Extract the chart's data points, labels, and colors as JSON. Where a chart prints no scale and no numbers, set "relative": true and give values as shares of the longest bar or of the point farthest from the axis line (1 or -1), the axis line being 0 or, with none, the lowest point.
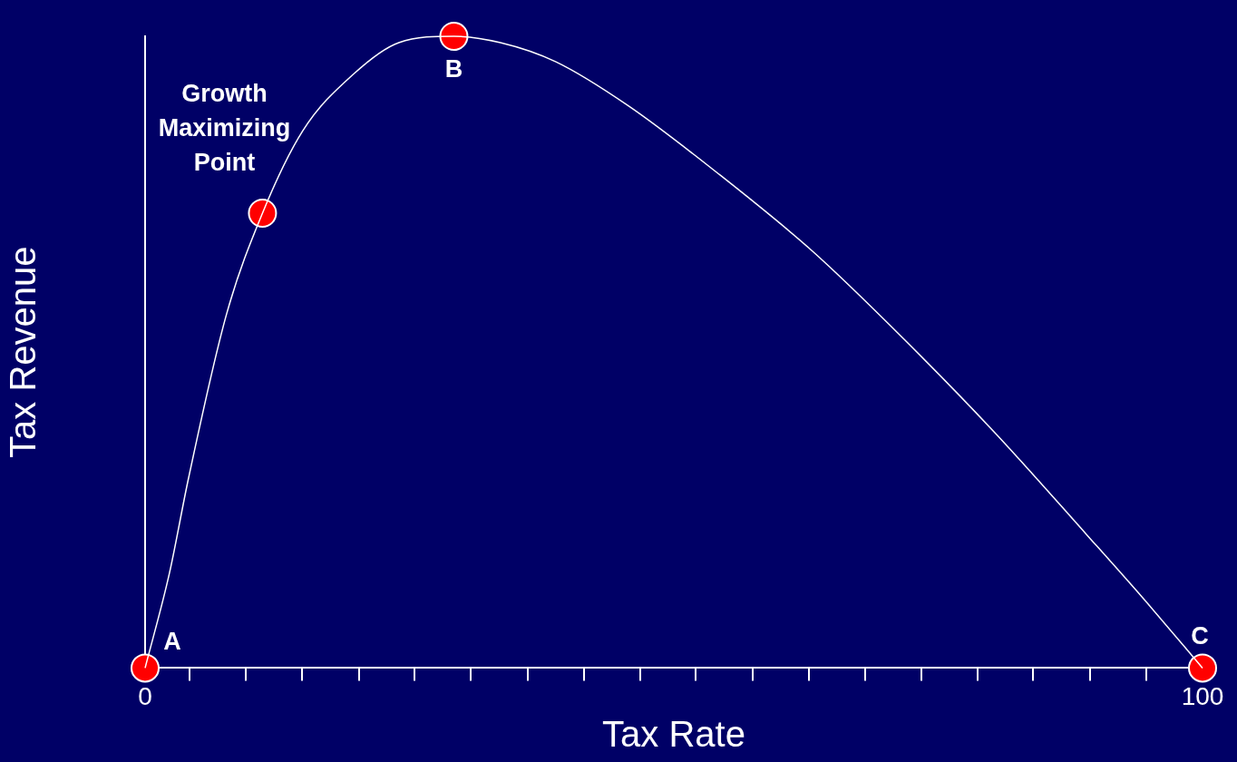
{
  "chart_data": {
    "type": "line",
    "xlabel": "Tax Rate",
    "ylabel": "Tax Revenue",
    "relative": true,
    "xlim": [
      0,
      100
    ],
    "xticks": [
      0,
      {
        "value": 4.2,
        "label": null
      },
      {
        "value": 9.5,
        "label": null
      },
      {
        "value": 14.8,
        "label": null
      },
      {
        "value": 20.2,
        "label": null
      },
      {
        "value": 25.5,
        "label": null
      },
      {
        "value": 30.8,
        "label": null
      },
      {
        "value": 36.2,
        "label": null
      },
      {
        "value": 41.5,
        "label": null
      },
      {
        "value": 46.8,
        "label": null
      },
      {
        "value": 52.1,
        "label": null
      },
      {
        "value": 57.5,
        "label": null
      },
      {
        "value": 62.8,
        "label": null
      },
      {
        "value": 68.1,
        "label": null
      },
      {
        "value": 73.4,
        "label": null
      },
      {
        "value": 78.7,
        "label": null
      },
      {
        "value": 84.0,
        "label": null
      },
      {
        "value": 89.4,
        "label": null
      },
      {
        "value": 94.7,
        "label": null
      },
      100
    ],
    "grid": false,
    "legend": false,
    "series": [
      {
        "color": "#ffffff",
        "marker": "none",
        "x": [
          0,
          2.3,
          4.1,
          7.7,
          11.1,
          14.9,
          19.7,
          24.0,
          29.2,
          33.6,
          38.8,
          45.7,
          54.4,
          63.1,
          71.8,
          80.5,
          89.1,
          94.4,
          100
        ],
        "values": [
          0,
          0.15,
          0.3,
          0.56,
          0.72,
          0.85,
          0.94,
          0.99,
          1,
          0.99,
          0.96,
          0.89,
          0.78,
          0.66,
          0.52,
          0.37,
          0.21,
          0.11,
          0
        ]
      },
      {
        "type": "scatter",
        "color": "#ff0000",
        "marker": "circle",
        "x": [
          0,
          11.1,
          29.2,
          100
        ],
        "values": [
          0,
          0.72,
          1,
          0
        ]
      }
    ],
    "annotations": [
      {
        "text": "A",
        "x": 0,
        "y": 0
      },
      {
        "text": "Growth Maximizing Point",
        "x": 11.1,
        "y": 0.72
      },
      {
        "text": "B",
        "x": 29.2,
        "y": 1
      },
      {
        "text": "C",
        "x": 100,
        "y": 0
      }
    ]
  }
}
